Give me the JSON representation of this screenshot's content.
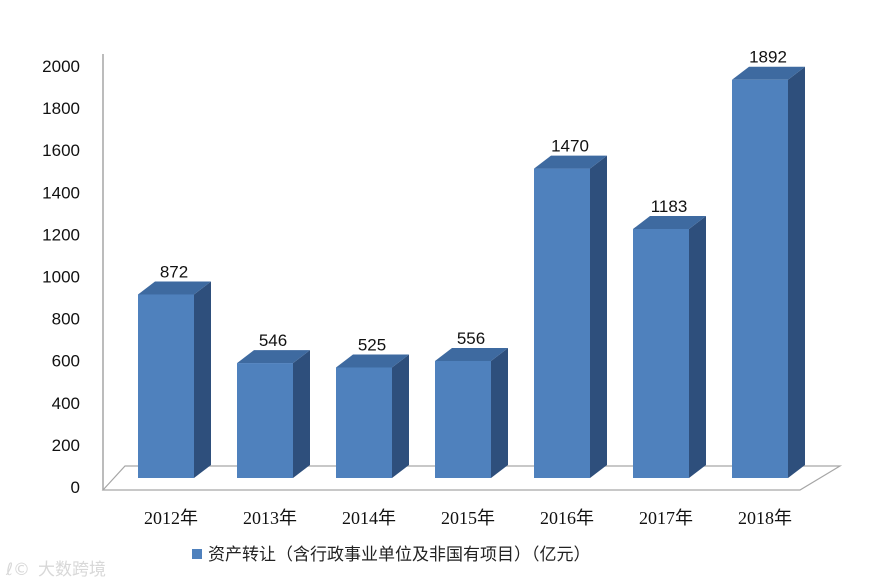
{
  "chart_data": {
    "type": "bar",
    "categories": [
      "2012年",
      "2013年",
      "2014年",
      "2015年",
      "2016年",
      "2017年",
      "2018年"
    ],
    "series": [
      {
        "name": "资产转让（含行政事业单位及非国有项目）（亿元）",
        "values": [
          872,
          546,
          525,
          556,
          1470,
          1183,
          1892
        ]
      }
    ],
    "data_labels": [
      "872",
      "546",
      "525",
      "556",
      "1470",
      "1183",
      "1892"
    ],
    "y_ticks": [
      "0",
      "200",
      "400",
      "600",
      "800",
      "1000",
      "1200",
      "1400",
      "1600",
      "1800",
      "2000"
    ],
    "ylim": [
      0,
      2000
    ],
    "title": "",
    "xlabel": "",
    "ylabel": "",
    "legend_position": "bottom",
    "grid": false,
    "style": "3d-column",
    "colors": {
      "bar_front": "#4f81bd",
      "bar_top": "#3e6aa0",
      "bar_side": "#2e4f7c",
      "axis": "#a6a6a6",
      "floor": "#ffffff"
    }
  },
  "watermark": "大数跨境"
}
